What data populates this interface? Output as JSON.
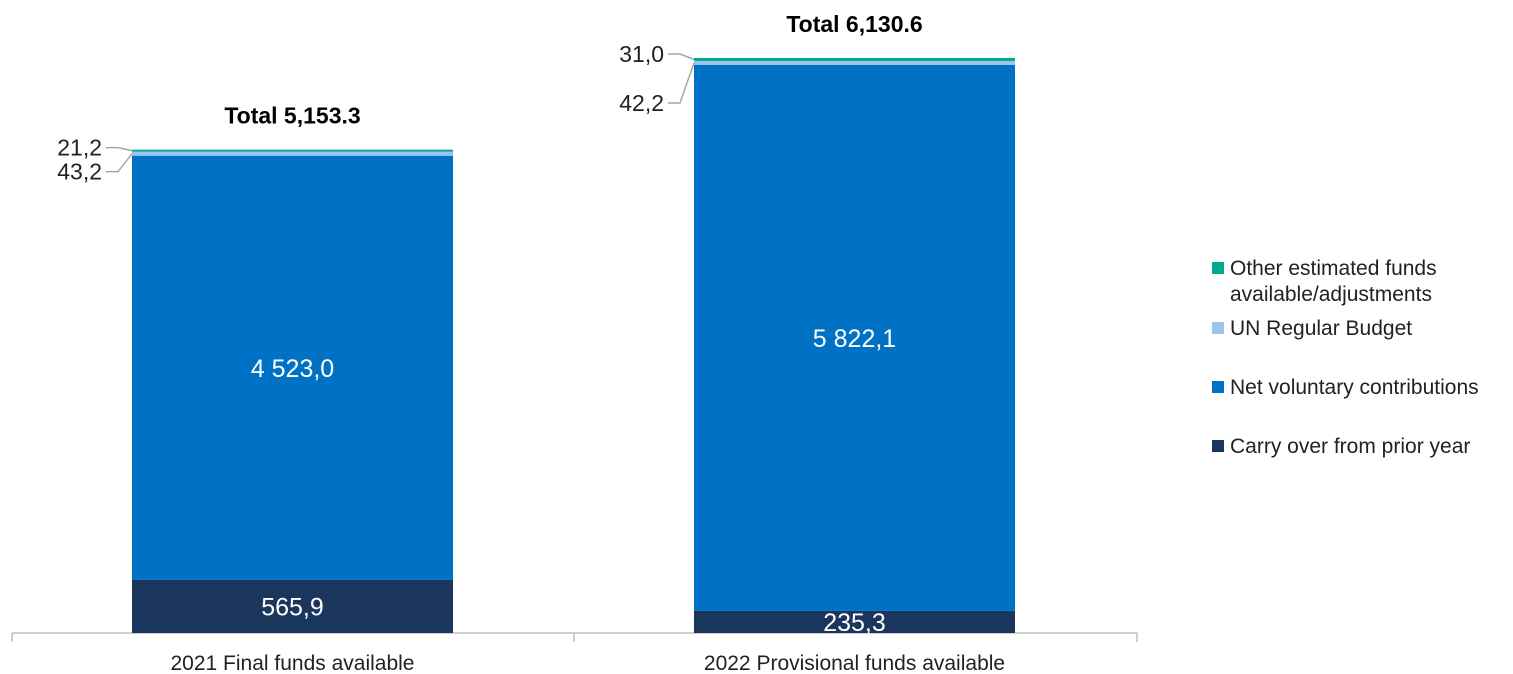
{
  "chart_data": {
    "type": "bar",
    "stacked": true,
    "categories": [
      "2021 Final funds available",
      "2022 Provisional funds available"
    ],
    "totals": [
      "Total 5,153.3",
      "Total 6,130.6"
    ],
    "series": [
      {
        "name": "Carry over from prior year",
        "color": "#1b365d",
        "values": [
          565.9,
          235.3
        ],
        "labels": [
          "565,9",
          "235,3"
        ]
      },
      {
        "name": "Net voluntary contributions",
        "color": "#0072c6",
        "values": [
          4523.0,
          5822.1
        ],
        "labels": [
          "4 523,0",
          "5 822,1"
        ]
      },
      {
        "name": "UN Regular Budget",
        "color": "#9cc3f0",
        "values": [
          43.2,
          42.2
        ],
        "labels": [
          "43,2",
          "42,2"
        ]
      },
      {
        "name": "Other estimated funds available/adjustments",
        "color": "#00a88e",
        "values": [
          21.2,
          31.0
        ],
        "labels": [
          "21,2",
          "31,0"
        ]
      }
    ],
    "legend_position": "right",
    "legend_order": [
      "Other estimated funds available/adjustments",
      "UN Regular Budget",
      "Net voluntary contributions",
      "Carry over from prior year"
    ],
    "grid": false,
    "ylim": [
      0,
      6130.6
    ]
  }
}
